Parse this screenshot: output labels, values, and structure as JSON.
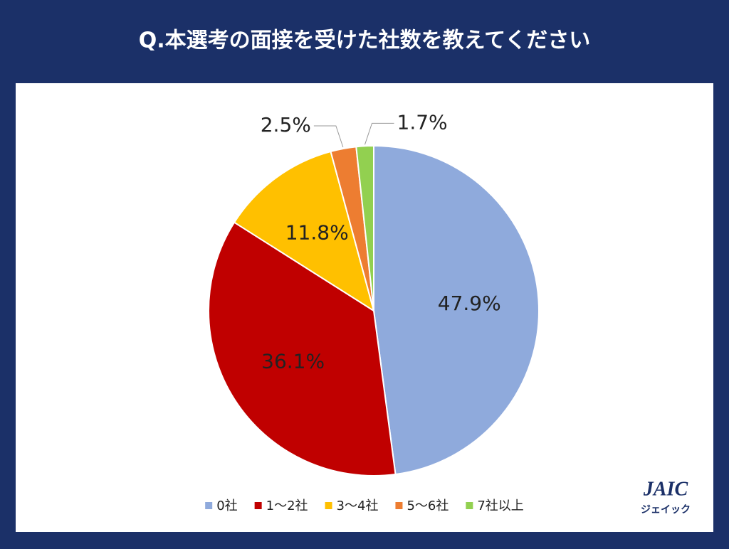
{
  "chart_data": {
    "type": "pie",
    "title": "Q.本選考の面接を受けた社数を教えてください",
    "categories": [
      "0社",
      "1～2社",
      "3～4社",
      "5～6社",
      "7社以上"
    ],
    "values": [
      47.9,
      36.1,
      11.8,
      2.5,
      1.7
    ],
    "value_labels": [
      "47.9%",
      "36.1%",
      "11.8%",
      "2.5%",
      "1.7%"
    ],
    "colors": [
      "#8faadc",
      "#c00000",
      "#ffc000",
      "#ed7d31",
      "#92d050"
    ],
    "legend": "bottom"
  },
  "logo": {
    "text": "JAIC",
    "subtext": "ジェイック"
  }
}
